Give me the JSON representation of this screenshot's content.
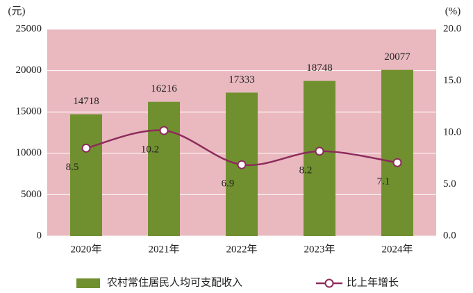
{
  "chart_data": {
    "type": "bar",
    "y_unit": "(元)",
    "y2_unit": "(%)",
    "categories": [
      "2020年",
      "2021年",
      "2022年",
      "2023年",
      "2024年"
    ],
    "series": [
      {
        "name": "农村常住居民人均可支配收入",
        "type": "bar",
        "color": "#70902f",
        "axis": "y",
        "values": [
          14718,
          16216,
          17333,
          18748,
          20077
        ]
      },
      {
        "name": "比上年增长",
        "type": "line",
        "color": "#8e2a5c",
        "axis": "y2",
        "values": [
          8.5,
          10.2,
          6.9,
          8.2,
          7.1
        ]
      }
    ],
    "ylim": [
      0,
      25000
    ],
    "yticks": [
      0,
      5000,
      10000,
      15000,
      20000,
      25000
    ],
    "y2lim": [
      0,
      20
    ],
    "y2ticks": [
      {
        "value": 0,
        "label": "0.0"
      },
      {
        "value": 5,
        "label": "5.0"
      },
      {
        "value": 10,
        "label": "10.0"
      },
      {
        "value": 15,
        "label": "15.0"
      },
      {
        "value": 20,
        "label": "20.0"
      }
    ],
    "background": "#e9b9bf",
    "grid": true
  }
}
